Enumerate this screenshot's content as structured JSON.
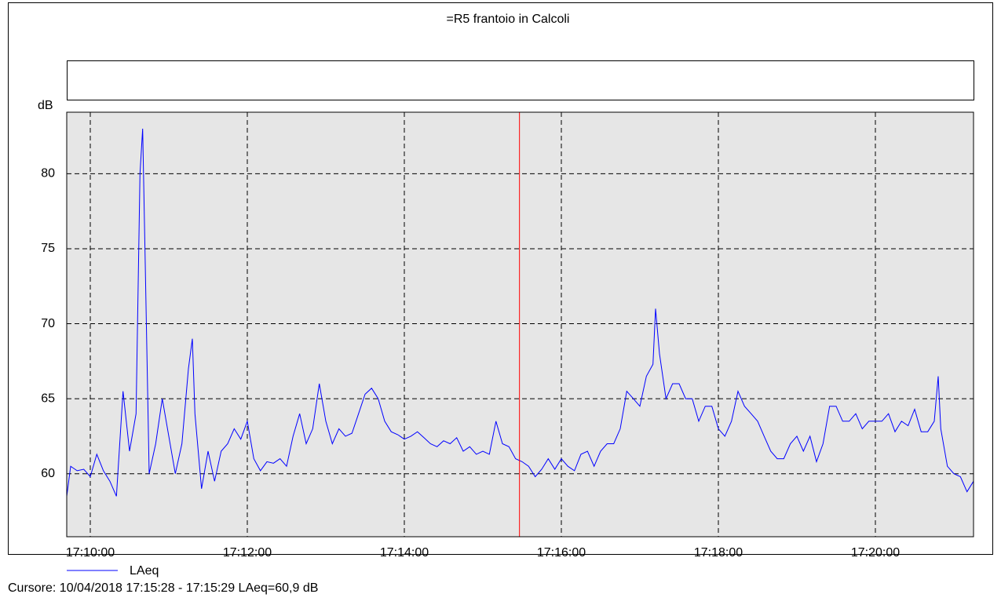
{
  "chart_data": {
    "type": "line",
    "title": "=R5 frantoio in Calcoli",
    "y_label": "dB",
    "xlim": [
      "17:09:42",
      "17:21:15"
    ],
    "xticks": [
      "17:10:00",
      "17:12:00",
      "17:14:00",
      "17:16:00",
      "17:18:00",
      "17:20:00"
    ],
    "ylim": [
      55.8,
      84.1
    ],
    "yticks": [
      60,
      65,
      70,
      75,
      80
    ],
    "grid": true,
    "cursor_x": "17:15:28",
    "cursor_text": "Cursore: 10/04/2018 17:15:28 - 17:15:29  LAeq=60,9 dB",
    "x": [
      "17:09:42",
      "17:09:45",
      "17:09:50",
      "17:09:55",
      "17:10:00",
      "17:10:05",
      "17:10:10",
      "17:10:15",
      "17:10:20",
      "17:10:25",
      "17:10:30",
      "17:10:35",
      "17:10:38",
      "17:10:40",
      "17:10:42",
      "17:10:45",
      "17:10:50",
      "17:10:55",
      "17:11:00",
      "17:11:05",
      "17:11:10",
      "17:11:15",
      "17:11:18",
      "17:11:20",
      "17:11:25",
      "17:11:30",
      "17:11:35",
      "17:11:40",
      "17:11:45",
      "17:11:50",
      "17:11:55",
      "17:12:00",
      "17:12:05",
      "17:12:10",
      "17:12:15",
      "17:12:20",
      "17:12:25",
      "17:12:30",
      "17:12:35",
      "17:12:40",
      "17:12:45",
      "17:12:50",
      "17:12:55",
      "17:13:00",
      "17:13:05",
      "17:13:10",
      "17:13:15",
      "17:13:20",
      "17:13:25",
      "17:13:30",
      "17:13:35",
      "17:13:40",
      "17:13:45",
      "17:13:50",
      "17:13:55",
      "17:14:00",
      "17:14:05",
      "17:14:10",
      "17:14:15",
      "17:14:20",
      "17:14:25",
      "17:14:30",
      "17:14:35",
      "17:14:40",
      "17:14:45",
      "17:14:50",
      "17:14:55",
      "17:15:00",
      "17:15:05",
      "17:15:10",
      "17:15:15",
      "17:15:20",
      "17:15:25",
      "17:15:30",
      "17:15:35",
      "17:15:40",
      "17:15:45",
      "17:15:50",
      "17:15:55",
      "17:16:00",
      "17:16:05",
      "17:16:10",
      "17:16:15",
      "17:16:20",
      "17:16:25",
      "17:16:30",
      "17:16:35",
      "17:16:40",
      "17:16:45",
      "17:16:50",
      "17:16:55",
      "17:17:00",
      "17:17:05",
      "17:17:10",
      "17:17:12",
      "17:17:15",
      "17:17:20",
      "17:17:25",
      "17:17:30",
      "17:17:35",
      "17:17:40",
      "17:17:45",
      "17:17:50",
      "17:17:55",
      "17:18:00",
      "17:18:05",
      "17:18:10",
      "17:18:15",
      "17:18:20",
      "17:18:25",
      "17:18:30",
      "17:18:35",
      "17:18:40",
      "17:18:45",
      "17:18:50",
      "17:18:55",
      "17:19:00",
      "17:19:05",
      "17:19:10",
      "17:19:15",
      "17:19:20",
      "17:19:25",
      "17:19:30",
      "17:19:35",
      "17:19:40",
      "17:19:45",
      "17:19:50",
      "17:19:55",
      "17:20:00",
      "17:20:05",
      "17:20:10",
      "17:20:15",
      "17:20:20",
      "17:20:25",
      "17:20:30",
      "17:20:35",
      "17:20:40",
      "17:20:45",
      "17:20:48",
      "17:20:50",
      "17:20:55",
      "17:21:00",
      "17:21:05",
      "17:21:10",
      "17:21:15"
    ],
    "series": [
      {
        "name": "LAeq",
        "color": "#0000ff",
        "values": [
          58.5,
          60.5,
          60.2,
          60.3,
          59.8,
          61.3,
          60.2,
          59.5,
          58.5,
          65.5,
          61.5,
          64,
          80,
          83,
          74,
          60,
          62,
          65,
          62.5,
          60,
          62,
          67,
          69,
          64,
          59,
          61.5,
          59.5,
          61.5,
          62,
          63,
          62.3,
          63.5,
          61,
          60.2,
          60.8,
          60.7,
          61,
          60.5,
          62.5,
          64,
          62,
          63,
          66,
          63.5,
          62,
          63,
          62.5,
          62.7,
          64,
          65.3,
          65.7,
          65,
          63.5,
          62.8,
          62.6,
          62.3,
          62.5,
          62.8,
          62.4,
          62,
          61.8,
          62.2,
          62,
          62.4,
          61.5,
          61.8,
          61.3,
          61.5,
          61.3,
          63.5,
          62,
          61.8,
          61,
          60.8,
          60.5,
          59.8,
          60.3,
          61,
          60.3,
          61,
          60.5,
          60.2,
          61.3,
          61.5,
          60.5,
          61.5,
          62,
          62,
          63,
          65.5,
          65,
          64.5,
          66.5,
          67.3,
          71,
          68,
          65,
          66,
          66,
          65,
          65,
          63.5,
          64.5,
          64.5,
          63,
          62.5,
          63.5,
          65.5,
          64.5,
          64,
          63.5,
          62.5,
          61.5,
          61,
          61,
          62,
          62.5,
          61.5,
          62.5,
          60.8,
          62,
          64.5,
          64.5,
          63.5,
          63.5,
          64,
          63,
          63.5,
          63.5,
          63.5,
          64,
          62.8,
          63.5,
          63.2,
          64.3,
          62.8,
          62.8,
          63.5,
          66.5,
          63,
          60.5,
          60,
          59.8,
          58.8,
          59.5
        ]
      }
    ]
  }
}
